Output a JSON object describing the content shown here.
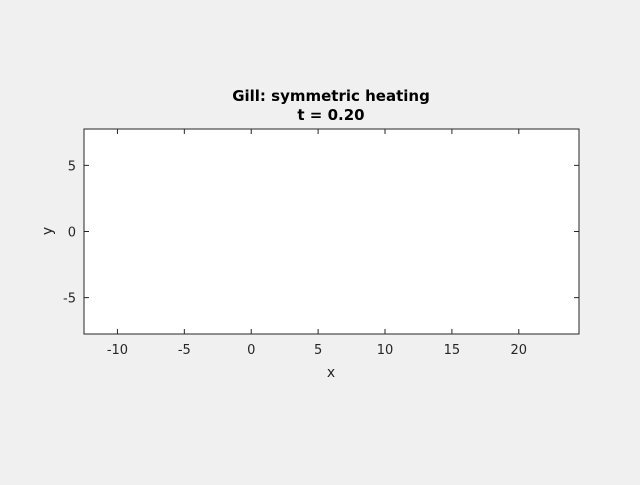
{
  "figure": {
    "background": "#f0f0f0"
  },
  "chart_data": {
    "type": "scatter",
    "title": [
      "Gill: symmetric heating",
      "t = 0.20"
    ],
    "xlabel": "x",
    "ylabel": "y",
    "xlim": [
      -12.5,
      24.5
    ],
    "ylim": [
      -7.75,
      7.75
    ],
    "xticks": [
      -10,
      -5,
      0,
      5,
      10,
      15,
      20
    ],
    "yticks": [
      -5,
      0,
      5
    ],
    "x_tick_labels": [
      "-10",
      "-5",
      "0",
      "5",
      "10",
      "15",
      "20"
    ],
    "y_tick_labels": [
      "-5",
      "0",
      "5"
    ],
    "grid": false,
    "series": [],
    "axes_background": "#ffffff",
    "axes_color": "#262626"
  }
}
